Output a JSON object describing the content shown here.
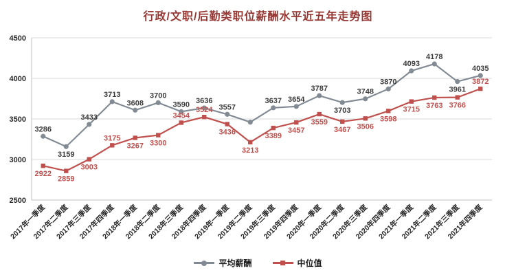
{
  "chart_data": {
    "type": "line",
    "title": "行政/文职/后勤类职位薪酬水平近五年走势图",
    "categories": [
      "2017年一季度",
      "2017年二季度",
      "2017年三季度",
      "2017年四季度",
      "2018年一季度",
      "2018年二季度",
      "2018年三季度",
      "2018年四季度",
      "2019年一季度",
      "2019年二季度",
      "2019年三季度",
      "2019年四季度",
      "2020年一季度",
      "2020年二季度",
      "2020年三季度",
      "2020年四季度",
      "2021年一季度",
      "2021年二季度",
      "2021年三季度",
      "2021年四季度"
    ],
    "series": [
      {
        "name": "平均薪酬",
        "color": "#828b94",
        "label_color": "#3b3b3b",
        "marker": "circle",
        "values": [
          3286,
          3159,
          3433,
          3713,
          3608,
          3700,
          3590,
          3636,
          3557,
          3460,
          3637,
          3654,
          3787,
          3703,
          3748,
          3870,
          4093,
          4178,
          3961,
          4035
        ],
        "labels": [
          "3286",
          "3159",
          "3433",
          "3713",
          "3608",
          "3700",
          "3590",
          "3636",
          "3557",
          "",
          "3637",
          "3654",
          "3787",
          "3703",
          "3748",
          "3870",
          "4093",
          "4178",
          "3961",
          "4035"
        ],
        "label_below": [
          1,
          13,
          18
        ]
      },
      {
        "name": "中位值",
        "color": "#c0504d",
        "label_color": "#c0504d",
        "marker": "square",
        "values": [
          2922,
          2859,
          3003,
          3175,
          3267,
          3300,
          3454,
          3524,
          3436,
          3213,
          3389,
          3457,
          3559,
          3467,
          3506,
          3598,
          3715,
          3763,
          3766,
          3872
        ],
        "labels": [
          "2922",
          "2859",
          "3003",
          "3175",
          "3267",
          "3300",
          "3454",
          "3524",
          "3436",
          "3213",
          "3389",
          "3457",
          "3559",
          "3467",
          "3506",
          "3598",
          "3715",
          "3763",
          "3766",
          "3872"
        ],
        "label_above": [
          3,
          6,
          7,
          19
        ]
      }
    ],
    "ylim": [
      2500,
      4500
    ],
    "yticks": [
      2500,
      3000,
      3500,
      4000,
      4500
    ],
    "grid": true,
    "legend_position": "bottom",
    "grid_color": "#d9d9d9",
    "axis_color": "#bfbfbf",
    "title_color": "#973733"
  }
}
